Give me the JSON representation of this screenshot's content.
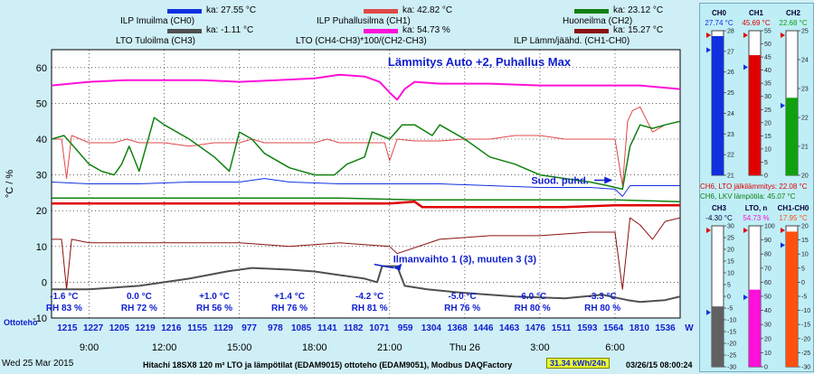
{
  "colors": {
    "ch0": "#1030e0",
    "ch1": "#e04848",
    "ch2": "#108010",
    "ch3": "#505050",
    "lto_n": "#ff10d8",
    "diff": "#8b1010",
    "accent": "#1020d0",
    "plot_bg": "#ffffff",
    "side_bg": "#bfeef7",
    "energy_bg": "#e8ff30"
  },
  "legend": [
    {
      "label": "ILP Imuilma (CH0)",
      "value": "ka: 27.55 °C",
      "color": "#1030e0"
    },
    {
      "label": "ILP Puhallusilma (CH1)",
      "value": "ka: 42.82 °C",
      "color": "#e04848"
    },
    {
      "label": "Huoneilma (CH2)",
      "value": "ka: 23.12 °C",
      "color": "#108010"
    },
    {
      "label": "LTO Tuloilma (CH3)",
      "value": "ka: -1.11 °C",
      "color": "#505050"
    },
    {
      "label": "LTO (CH4-CH3)*100/(CH2-CH3)",
      "value": "ka: 54.73 %",
      "color": "#ff10d8"
    },
    {
      "label": "ILP Lämm/jäähd. (CH1-CH0)",
      "value": "ka: 15.27 °C",
      "color": "#8b1010"
    }
  ],
  "chart_data": {
    "type": "line",
    "title": "Lämmitys Auto +2, Puhallus Max",
    "ylabel": "°C / %",
    "ylim": [
      -10,
      65
    ],
    "yticks": [
      -10,
      0,
      10,
      20,
      30,
      40,
      50,
      60
    ],
    "xlim": [
      7.5,
      32.6
    ],
    "xticks": [
      {
        "x": 9,
        "label": "9:00"
      },
      {
        "x": 12,
        "label": "12:00"
      },
      {
        "x": 15,
        "label": "15:00"
      },
      {
        "x": 18,
        "label": "18:00"
      },
      {
        "x": 21,
        "label": "21:00"
      },
      {
        "x": 24,
        "label": "Thu 26"
      },
      {
        "x": 27,
        "label": "3:00"
      },
      {
        "x": 30,
        "label": "6:00"
      }
    ],
    "series": [
      {
        "name": "LTO (CH4-CH3)*100/(CH2-CH3)",
        "color": "#ff10d8",
        "width": 2,
        "x": [
          7.5,
          9,
          10.5,
          12,
          13.5,
          15,
          16.5,
          18,
          19,
          20,
          20.6,
          21,
          21.3,
          21.6,
          22,
          23,
          25,
          27,
          29,
          31,
          32.6
        ],
        "y": [
          55,
          56,
          56.5,
          56.5,
          56.5,
          56,
          56.5,
          57,
          58,
          57.5,
          56,
          53,
          51,
          54,
          56,
          55.5,
          55.5,
          55,
          55,
          55,
          54
        ]
      },
      {
        "name": "ILP Puhallusilma (CH1)",
        "color": "#e04848",
        "width": 1,
        "x": [
          7.5,
          7.9,
          8.1,
          8.3,
          9,
          10,
          10.5,
          11,
          12,
          13,
          14,
          15,
          15.5,
          16,
          17,
          18,
          18.5,
          19,
          20,
          20.8,
          21,
          21.3,
          22,
          23,
          24,
          25,
          26,
          27,
          28,
          29,
          30,
          30.3,
          30.5,
          30.7,
          31,
          31.5,
          32,
          32.6
        ],
        "y": [
          40,
          40,
          29,
          41,
          39,
          39,
          40,
          39,
          39,
          38,
          39,
          39,
          40,
          39,
          39,
          39,
          40,
          39,
          39,
          39,
          34,
          40,
          39.5,
          39.5,
          40,
          40,
          41,
          41,
          40,
          40,
          40,
          27,
          45,
          48,
          49,
          42,
          44,
          45
        ]
      },
      {
        "name": "Huoneilma (CH2)",
        "color": "#108010",
        "width": 1.5,
        "x": [
          7.5,
          8,
          8.5,
          9,
          9.5,
          10,
          10.3,
          10.6,
          11,
          11.6,
          12,
          13,
          14,
          14.6,
          15,
          15.5,
          16,
          16.5,
          17,
          18,
          18.8,
          19.3,
          20,
          20.3,
          21,
          21.5,
          22,
          22.7,
          23,
          24,
          25,
          26,
          27,
          28,
          29,
          29.7,
          30.3,
          30.6,
          31,
          31.5,
          32,
          32.6
        ],
        "y": [
          40,
          41,
          37,
          33,
          31,
          30,
          33,
          38,
          31,
          46,
          44,
          40,
          35,
          31,
          42,
          40,
          36,
          34,
          32,
          30,
          30,
          33,
          35,
          42,
          40,
          44,
          44,
          41,
          44,
          40,
          35,
          33,
          30,
          29,
          28,
          27,
          26,
          38,
          44,
          43,
          44,
          45
        ]
      },
      {
        "name": "ILP Imuilma (CH0)",
        "color": "#1030e0",
        "width": 1,
        "x": [
          7.5,
          9,
          11,
          13,
          15,
          16,
          17,
          19,
          21,
          23,
          25,
          27,
          29,
          30,
          30.3,
          30.6,
          32.6
        ],
        "y": [
          28,
          27.5,
          27.5,
          28,
          28,
          29,
          28,
          27.5,
          27.5,
          27.5,
          27,
          26.5,
          26.5,
          26,
          24,
          27,
          27
        ]
      },
      {
        "name": "CH6 LKV lämpötila",
        "color": "#108010",
        "width": 1.5,
        "x": [
          7.5,
          11,
          15,
          19,
          22,
          26,
          30,
          32.6
        ],
        "y": [
          23.5,
          23.5,
          23.5,
          23.5,
          23,
          23,
          23,
          22.5
        ]
      },
      {
        "name": "CH6 LTO jälkilämmitys",
        "color": "#e00000",
        "width": 2.5,
        "x": [
          7.5,
          10,
          13,
          16,
          18,
          21,
          22,
          22.3,
          24,
          26,
          28,
          30,
          31,
          32.6
        ],
        "y": [
          22,
          22,
          22,
          22,
          22,
          22,
          22.5,
          21,
          21,
          21,
          21,
          21.5,
          21.5,
          21.5
        ]
      },
      {
        "name": "ILP Lämm/jäähd. (CH1-CH0)",
        "color": "#8b1010",
        "width": 1,
        "x": [
          7.5,
          7.9,
          8.1,
          8.3,
          9,
          11,
          13,
          15,
          17,
          19,
          21,
          21.3,
          23,
          25,
          27,
          29,
          30,
          30.3,
          30.6,
          31,
          31.5,
          32,
          32.6
        ],
        "y": [
          12,
          12,
          -2,
          12,
          11,
          11,
          11,
          11,
          10,
          11,
          10,
          8,
          12,
          13,
          13,
          14,
          14,
          -2,
          18,
          16,
          12,
          17,
          18
        ]
      },
      {
        "name": "LTO Tuloilma (CH3)",
        "color": "#505050",
        "width": 2,
        "x": [
          7.5,
          9,
          11,
          13,
          14.5,
          15.5,
          17,
          18,
          19,
          20,
          20.5,
          20.7,
          21.3,
          21.6,
          22.5,
          24,
          26,
          28,
          29.5,
          30.5,
          31,
          32,
          32.6
        ],
        "y": [
          -2,
          -2,
          -1,
          1,
          3,
          4,
          3.5,
          3,
          2,
          1,
          0,
          4.5,
          4.5,
          -1,
          -2,
          -3,
          -4,
          -4.5,
          -3.5,
          -5,
          -5.5,
          -5,
          -4
        ]
      }
    ],
    "annotations": [
      {
        "text": "Ilmanvaihto 1 (3), muuten 3 (3)",
        "x": 24,
        "y": 5.5
      },
      {
        "text": "Suod. puhd.",
        "x": 27.8,
        "y": 27.5
      }
    ],
    "bottom_notes": [
      {
        "x": 8,
        "temp": "-1.6 °C",
        "rh": "RH 83 %"
      },
      {
        "x": 11,
        "temp": "0.0 °C",
        "rh": "RH 72 %"
      },
      {
        "x": 14,
        "temp": "+1.0 °C",
        "rh": "RH 56 %"
      },
      {
        "x": 17,
        "temp": "+1.4 °C",
        "rh": "RH 76 %"
      },
      {
        "x": 20.2,
        "temp": "-4.2 °C",
        "rh": "RH 81 %"
      },
      {
        "x": 23.9,
        "temp": "-5.0 °C",
        "rh": "RH 76 %"
      },
      {
        "x": 26.7,
        "temp": "-6.0 °C",
        "rh": "RH 80 %"
      },
      {
        "x": 29.5,
        "temp": "-3.3 °C",
        "rh": "RH 80 %"
      }
    ],
    "energy_label": "Ottoteho",
    "energy_unit": "W",
    "energy_values": [
      "1215",
      "1227",
      "1205",
      "1219",
      "1216",
      "1155",
      "1129",
      "977",
      "978",
      "1085",
      "1141",
      "1182",
      "1071",
      "959",
      "1304",
      "1368",
      "1446",
      "1463",
      "1476",
      "1511",
      "1593",
      "1564",
      "1810",
      "1536"
    ]
  },
  "side": {
    "top": [
      {
        "name": "CH0",
        "value": "27.74 °C",
        "color": "#1030e0",
        "min": 21,
        "max": 28,
        "ticks": [
          "28",
          "27",
          "26",
          "25",
          "24",
          "23",
          "22",
          "21"
        ],
        "level": 27.74
      },
      {
        "name": "CH1",
        "value": "45.69 °C",
        "color": "#e00000",
        "min": 0,
        "max": 55,
        "ticks": [
          "55",
          "50",
          "45",
          "40",
          "35",
          "30",
          "25",
          "20",
          "15",
          "10",
          "5",
          "0"
        ],
        "level": 45.69
      },
      {
        "name": "CH2",
        "value": "22.68 °C",
        "color": "#10a010",
        "min": 20,
        "max": 25,
        "ticks": [
          "25",
          "24",
          "23",
          "22",
          "21",
          "20"
        ],
        "level": 22.68
      }
    ],
    "line1": "CH6, LTO jälkilämmitys: 22.08 °C",
    "line2": "CH6, LKV lämpötila: 45.07 °C",
    "bottom": [
      {
        "name": "CH3",
        "value": "-4.30 °C",
        "color": "#606060",
        "min": -30,
        "max": 30,
        "ticks": [
          "30",
          "25",
          "20",
          "15",
          "10",
          "5",
          "0",
          "-5",
          "-10",
          "-15",
          "-20",
          "-25",
          "-30"
        ],
        "level": -4.3
      },
      {
        "name": "LTO, n",
        "value": "54.73 %",
        "color": "#ff10d8",
        "min": 0,
        "max": 100,
        "ticks": [
          "100",
          "90",
          "80",
          "70",
          "60",
          "50",
          "40",
          "30",
          "20",
          "10",
          "0"
        ],
        "level": 54.73
      },
      {
        "name": "CH1-CH0",
        "value": "17.95 °C",
        "color": "#ff5010",
        "min": -30,
        "max": 20,
        "ticks": [
          "20",
          "15",
          "10",
          "5",
          "0",
          "-5",
          "-10",
          "-15",
          "-20",
          "-25",
          "-30"
        ],
        "level": 17.95
      }
    ]
  },
  "footer": {
    "date": "Wed 25 Mar 2015",
    "title": "Hitachi 18SX8 120 m² LTO ja lämpötilat (EDAM9015) ottoteho (EDAM9051), Modbus DAQFactory",
    "energy": "31.34 kWh/24h",
    "timestamp": "03/26/15 08:00:24"
  }
}
